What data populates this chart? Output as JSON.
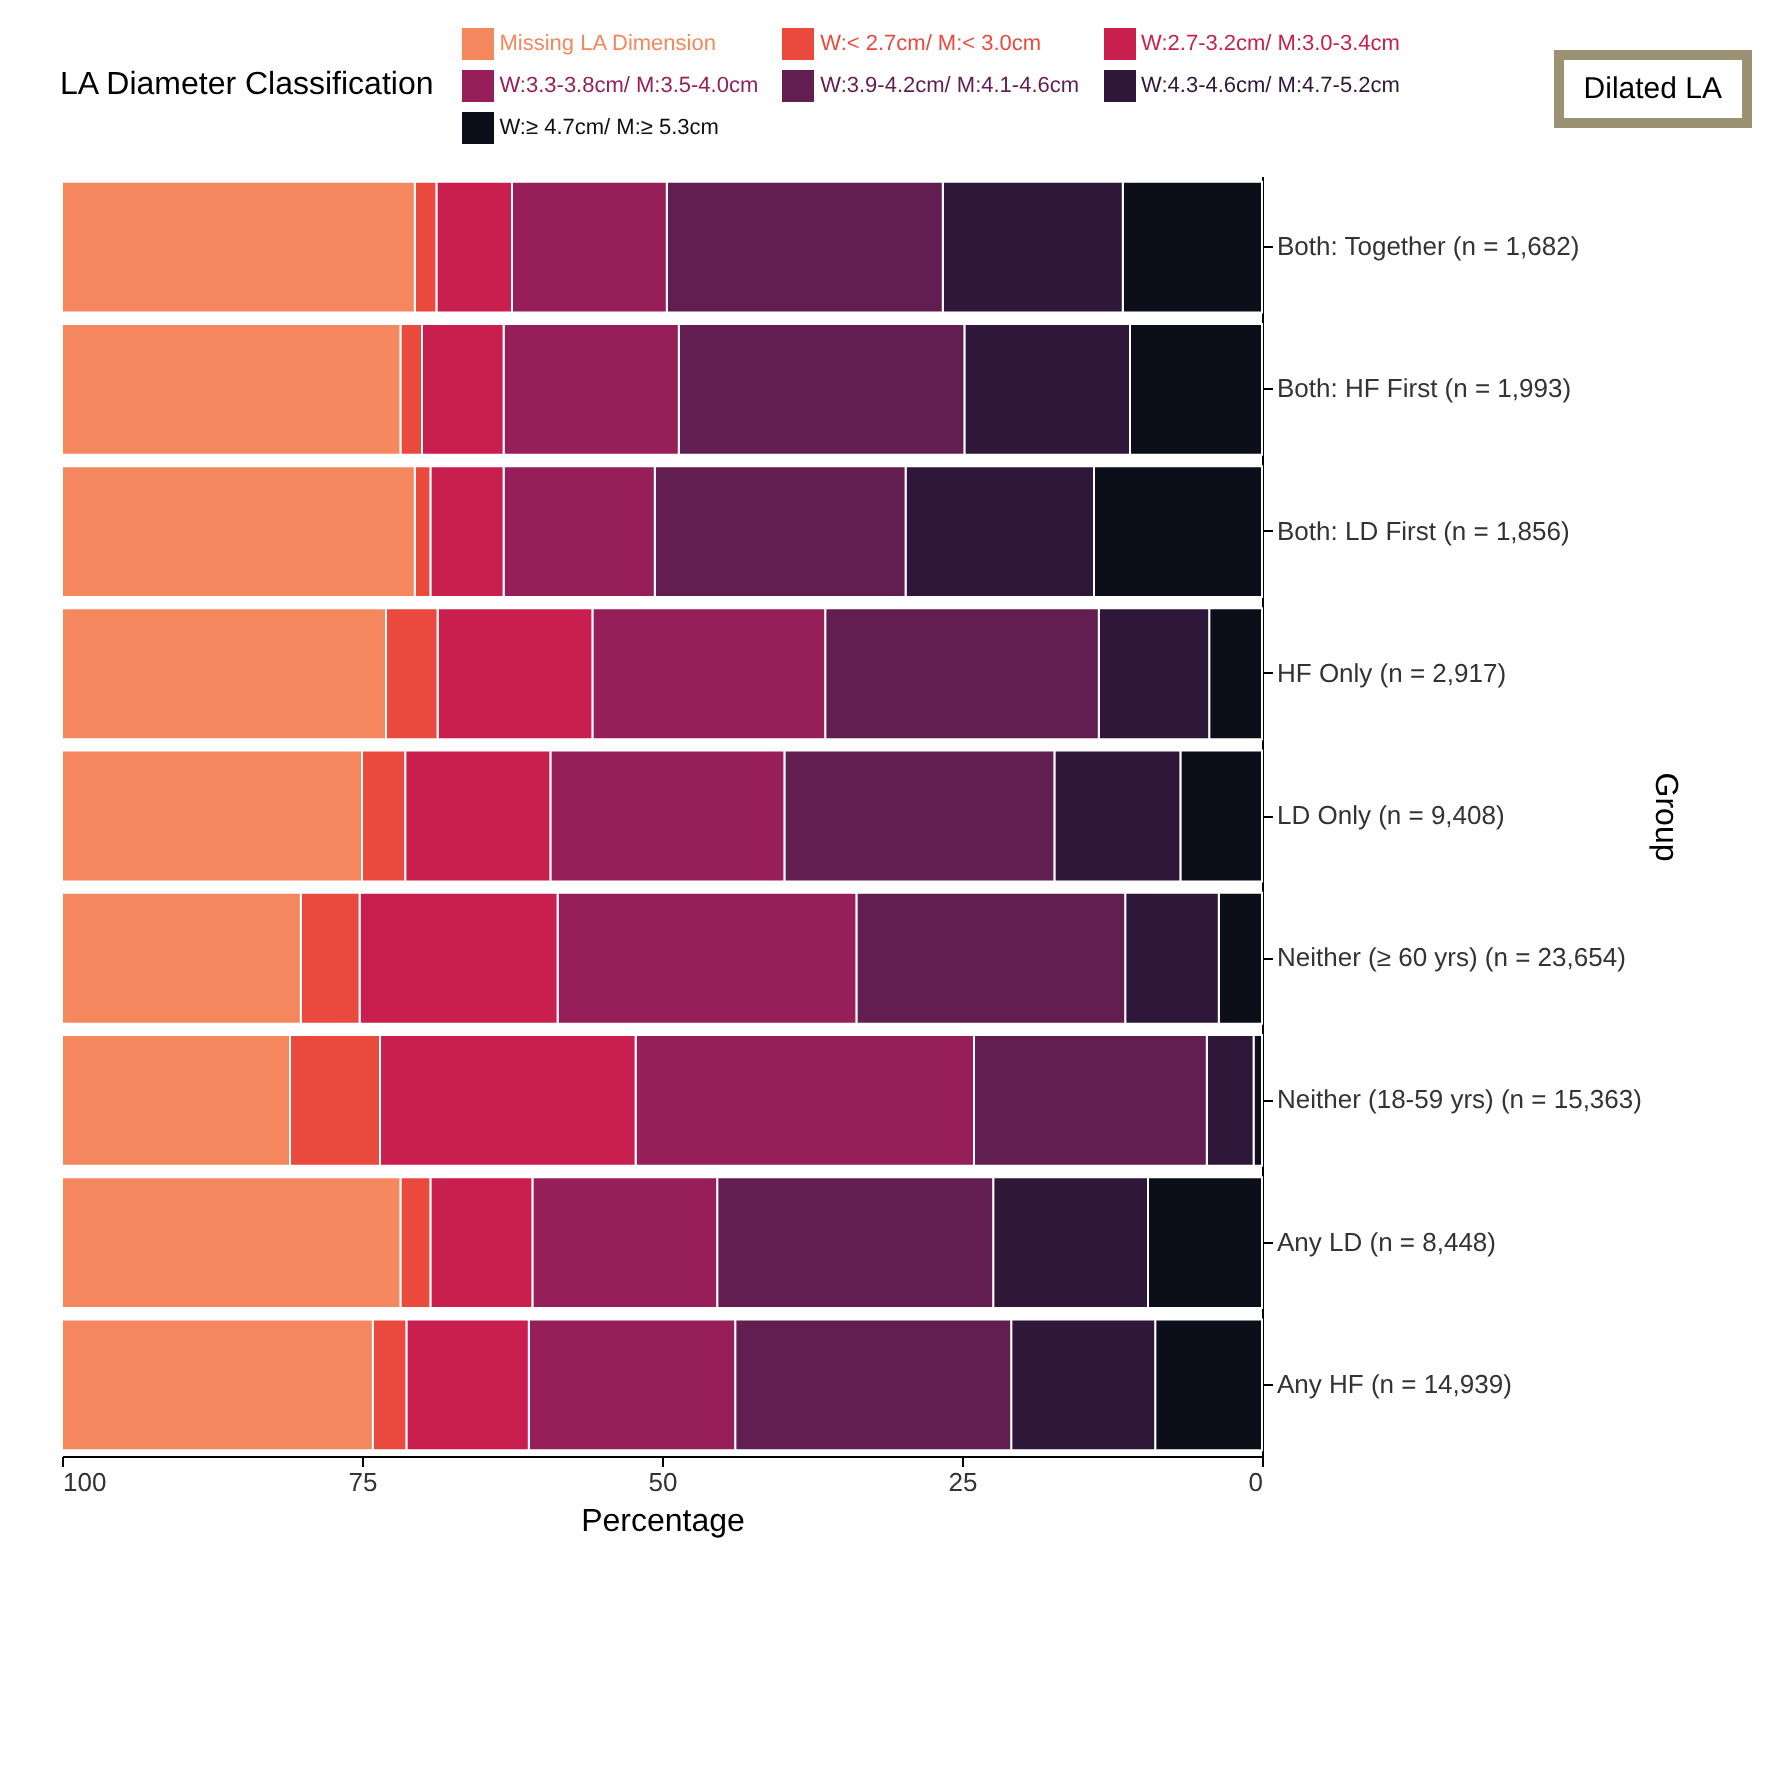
{
  "chart_data": {
    "type": "bar",
    "orientation": "horizontal",
    "stacked": true,
    "xlabel": "Percentage",
    "ylabel": "Group",
    "legend_title": "LA Diameter Classification",
    "categories": [
      "Both: Together (n = 1,682)",
      "Both: HF First (n = 1,993)",
      "Both: LD First (n = 1,856)",
      "HF Only (n = 2,917)",
      "LD Only (n = 9,408)",
      "Neither (≥ 60 yrs) (n = 23,654)",
      "Neither (18-59 yrs) (n = 15,363)",
      "Any LD (n = 8,448)",
      "Any HF (n = 14,939)"
    ],
    "series": [
      {
        "name": "W:≥ 4.7cm/ M:≥ 5.3cm",
        "color": "#0c0e1a",
        "values": [
          11.6,
          11.0,
          14.0,
          4.4,
          6.8,
          3.6,
          0.7,
          9.5,
          8.9
        ]
      },
      {
        "name": "W:4.3-4.6cm/ M:4.7-5.2cm",
        "color": "#2f1739",
        "values": [
          15.0,
          13.8,
          15.7,
          9.2,
          10.5,
          7.8,
          3.9,
          12.9,
          12.0
        ]
      },
      {
        "name": "W:3.9-4.2cm/ M:4.1-4.6cm",
        "color": "#621e51",
        "values": [
          23.0,
          23.8,
          20.9,
          22.8,
          22.5,
          22.4,
          19.4,
          23.0,
          23.0
        ]
      },
      {
        "name": "W:3.3-3.8cm/ M:3.5-4.0cm",
        "color": "#961f5a",
        "values": [
          12.9,
          14.6,
          12.6,
          19.4,
          19.5,
          24.9,
          28.2,
          15.4,
          17.2
        ]
      },
      {
        "name": "W:2.7-3.2cm/ M:3.0-3.4cm",
        "color": "#c91f4e",
        "values": [
          6.3,
          6.8,
          6.1,
          12.9,
          12.1,
          16.5,
          21.3,
          8.5,
          10.2
        ]
      },
      {
        "name": "W:< 2.7cm/ M:< 3.0cm",
        "color": "#ea4a3d",
        "values": [
          1.8,
          1.8,
          1.3,
          4.3,
          3.6,
          4.9,
          7.5,
          2.5,
          2.8
        ]
      },
      {
        "name": "Missing LA Dimension",
        "color": "#f4875e",
        "values": [
          29.4,
          28.2,
          29.4,
          27.0,
          25.0,
          19.9,
          19.0,
          28.2,
          25.9
        ]
      }
    ],
    "xlim": [
      100,
      0
    ],
    "xticks": [
      100,
      75,
      50,
      25,
      0
    ],
    "legend": "top",
    "annotations": [
      "Dilated LA"
    ]
  }
}
